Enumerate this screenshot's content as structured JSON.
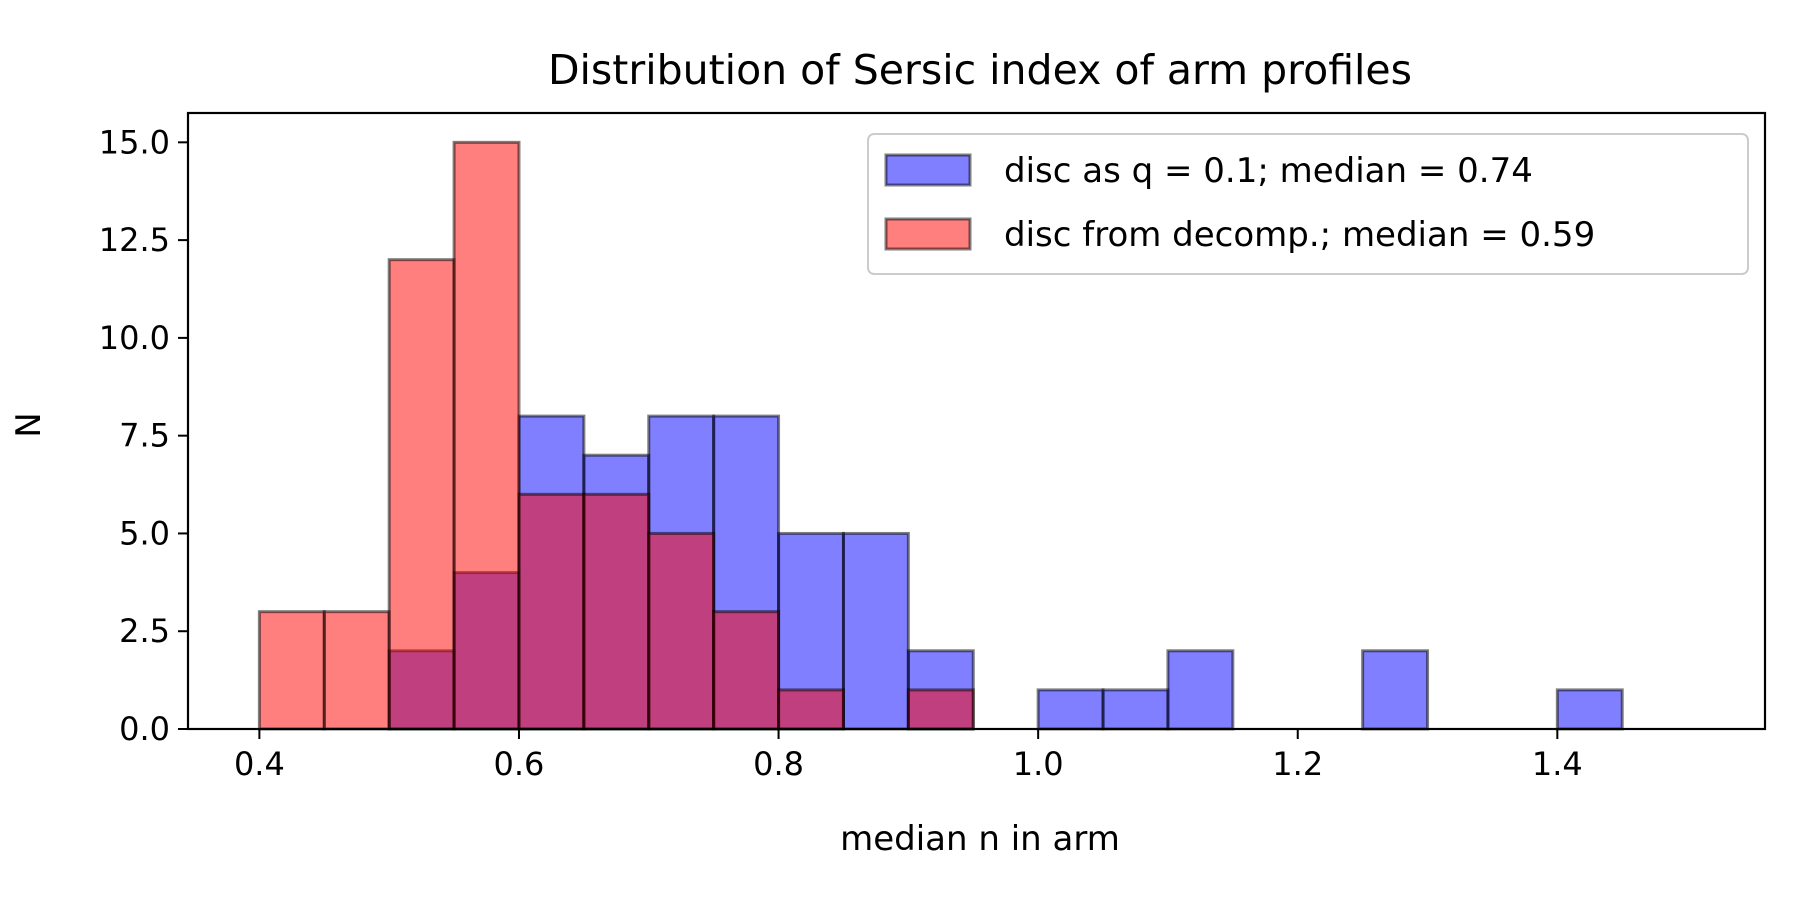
{
  "chart_data": {
    "type": "bar",
    "title": "Distribution of Sersic index of arm profiles",
    "xlabel": "median n in arm",
    "ylabel": "N",
    "xlim": [
      0.345,
      1.56
    ],
    "ylim": [
      0,
      15.75
    ],
    "x_ticks": [
      {
        "value": 0.4,
        "label": "0.4"
      },
      {
        "value": 0.6,
        "label": "0.6"
      },
      {
        "value": 0.8,
        "label": "0.8"
      },
      {
        "value": 1.0,
        "label": "1.0"
      },
      {
        "value": 1.2,
        "label": "1.2"
      },
      {
        "value": 1.4,
        "label": "1.4"
      }
    ],
    "y_ticks": [
      {
        "value": 0.0,
        "label": "0.0"
      },
      {
        "value": 2.5,
        "label": "2.5"
      },
      {
        "value": 5.0,
        "label": "5.0"
      },
      {
        "value": 7.5,
        "label": "7.5"
      },
      {
        "value": 10.0,
        "label": "10.0"
      },
      {
        "value": 12.5,
        "label": "12.5"
      },
      {
        "value": 15.0,
        "label": "15.0"
      }
    ],
    "grid": false,
    "legend_position": "top-right",
    "bin_edges": [
      0.4,
      0.45,
      0.5,
      0.55,
      0.6,
      0.65,
      0.7,
      0.75,
      0.8,
      0.85,
      0.9,
      0.95,
      1.0,
      1.05,
      1.1,
      1.15,
      1.2,
      1.25,
      1.3,
      1.35,
      1.4,
      1.45,
      1.5
    ],
    "series": [
      {
        "name": "disc as q = 0.1; median = 0.74",
        "color": "#0000ff",
        "counts": [
          0,
          0,
          2,
          4,
          8,
          7,
          8,
          8,
          5,
          5,
          2,
          0,
          1,
          1,
          2,
          0,
          0,
          2,
          0,
          0,
          1,
          0
        ]
      },
      {
        "name": "disc from decomp.; median = 0.59",
        "color": "#ff0000",
        "counts": [
          3,
          3,
          12,
          15,
          6,
          6,
          5,
          3,
          1,
          0,
          1,
          0,
          0,
          0,
          0,
          0,
          0,
          0,
          0,
          0,
          0,
          0
        ]
      }
    ]
  }
}
